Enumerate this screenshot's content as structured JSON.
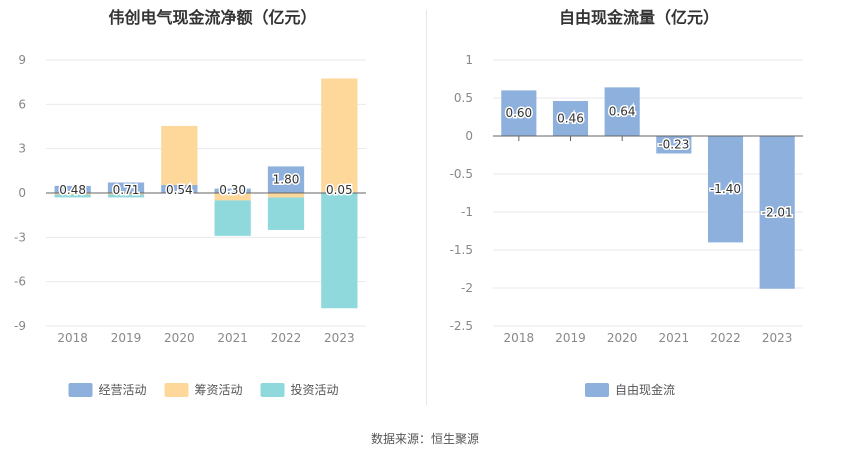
{
  "source": "数据来源：恒生聚源",
  "colors": {
    "operating": "#8eb0dc",
    "financing": "#fdd89a",
    "investing": "#8fd8dc",
    "free": "#8eb0dc"
  },
  "chart_data": [
    {
      "type": "bar",
      "title": "伟创电气现金流净额（亿元）",
      "categories": [
        "2018",
        "2019",
        "2020",
        "2021",
        "2022",
        "2023"
      ],
      "ylim": [
        -9,
        9
      ],
      "yticks": [
        9,
        6,
        3,
        0,
        -3,
        -6,
        -9
      ],
      "grid": true,
      "legend_position": "bottom",
      "series": [
        {
          "name": "经营活动",
          "key": "operating",
          "values": [
            0.48,
            0.71,
            0.54,
            0.3,
            1.8,
            0.05
          ],
          "labels": [
            "0.48",
            "0.71",
            "0.54",
            "0.30",
            "1.80",
            "0.05"
          ]
        },
        {
          "name": "筹资活动",
          "key": "financing",
          "values": [
            -0.1,
            -0.1,
            4.0,
            -0.5,
            -0.3,
            7.7
          ]
        },
        {
          "name": "投资活动",
          "key": "investing",
          "values": [
            -0.2,
            -0.2,
            0.0,
            -2.4,
            -2.2,
            -7.8
          ]
        }
      ]
    },
    {
      "type": "bar",
      "title": "自由现金流量（亿元）",
      "categories": [
        "2018",
        "2019",
        "2020",
        "2021",
        "2022",
        "2023"
      ],
      "ylim": [
        -2.5,
        1
      ],
      "yticks": [
        "1",
        "0.5",
        "0",
        "-0.5",
        "-1",
        "-1.5",
        "-2",
        "-2.5"
      ],
      "grid": true,
      "legend_position": "bottom",
      "series": [
        {
          "name": "自由现金流",
          "key": "free",
          "values": [
            0.6,
            0.46,
            0.64,
            -0.23,
            -1.4,
            -2.01
          ],
          "labels": [
            "0.60",
            "0.46",
            "0.64",
            "-0.23",
            "-1.40",
            "-2.01"
          ]
        }
      ]
    }
  ]
}
